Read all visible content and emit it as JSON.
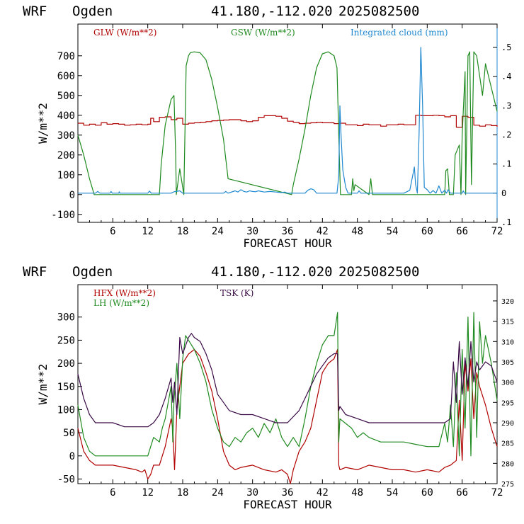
{
  "colors": {
    "red": "#b00000",
    "green": "#1f8a1f",
    "blue": "#1f88d0",
    "purple": "#3a0a46",
    "axis": "#000000"
  },
  "chart_data": [
    {
      "type": "line",
      "header": {
        "model": "WRF",
        "site": "Ogden",
        "latlon": "41.180,-112.020",
        "date": "2025082500"
      },
      "xlabel": "FORECAST HOUR",
      "ylabel": "W/m**2",
      "xlim": [
        0,
        72
      ],
      "xticks": [
        6,
        12,
        18,
        24,
        30,
        36,
        42,
        48,
        54,
        60,
        66,
        72
      ],
      "ylim": [
        -140,
        860
      ],
      "yticks": [
        -100,
        0,
        100,
        200,
        300,
        400,
        500,
        600,
        700
      ],
      "y2lim": [
        -0.1,
        0.58
      ],
      "y2ticks": [
        -0.1,
        0,
        0.1,
        0.2,
        0.3,
        0.4,
        0.5
      ],
      "y2ticklabels": [
        ".1",
        "0",
        ".1",
        ".2",
        ".3",
        ".4",
        ".5"
      ],
      "legend": [
        "GLW (W/m**2)",
        "GSW (W/m**2)",
        "Integrated cloud (mm)"
      ],
      "series": [
        {
          "name": "GLW (W/m**2)",
          "axis": "left",
          "color": "#b00000",
          "step": true,
          "x": [
            0,
            1,
            2,
            3,
            4,
            5,
            6,
            7,
            8,
            9,
            10,
            11,
            12,
            12.5,
            13,
            14,
            15,
            16,
            17,
            18,
            19,
            20,
            21,
            22,
            23,
            24,
            25,
            26,
            27,
            28,
            29,
            30,
            31,
            32,
            33,
            34,
            35,
            36,
            37,
            38,
            39,
            40,
            41,
            42,
            43,
            44,
            45,
            46,
            47,
            48,
            49,
            50,
            51,
            52,
            53,
            54,
            55,
            56,
            57,
            58,
            59,
            60,
            61,
            62,
            63,
            64,
            65,
            66,
            67,
            68,
            69,
            70,
            71,
            72
          ],
          "y": [
            360,
            350,
            355,
            350,
            362,
            355,
            358,
            355,
            350,
            352,
            355,
            352,
            355,
            385,
            368,
            390,
            392,
            378,
            385,
            355,
            360,
            362,
            365,
            368,
            372,
            374,
            376,
            378,
            378,
            372,
            368,
            372,
            390,
            398,
            398,
            395,
            385,
            370,
            365,
            358,
            360,
            362,
            365,
            362,
            362,
            358,
            360,
            352,
            352,
            348,
            355,
            352,
            352,
            345,
            352,
            352,
            355,
            352,
            352,
            400,
            398,
            398,
            400,
            398,
            392,
            398,
            340,
            395,
            390,
            350,
            345,
            352,
            348,
            342
          ]
        },
        {
          "name": "GSW (W/m**2)",
          "axis": "left",
          "color": "#1f8a1f",
          "step": false,
          "x": [
            0,
            1,
            2,
            2.8,
            14,
            14.3,
            15,
            16,
            16.5,
            16.8,
            16.9,
            17.5,
            18.2,
            18.6,
            19,
            19.3,
            20,
            21,
            22,
            23,
            24,
            25,
            25.8,
            36.7,
            37,
            38,
            39,
            40,
            41,
            42,
            43,
            44,
            44.5,
            44.8,
            45.1,
            45.3,
            47,
            47.2,
            47.4,
            47.6,
            50,
            50.3,
            50.6,
            50.9,
            63,
            63.2,
            63.5,
            63.8,
            64.5,
            64.8,
            65.5,
            65.8,
            66,
            66.5,
            66.6,
            67,
            67.3,
            67.6,
            68,
            68.5,
            69.5,
            70,
            71,
            72
          ],
          "y": [
            300,
            200,
            80,
            0,
            0,
            150,
            350,
            480,
            500,
            200,
            0,
            130,
            0,
            650,
            700,
            715,
            720,
            715,
            680,
            580,
            440,
            280,
            80,
            0,
            50,
            180,
            330,
            500,
            640,
            710,
            720,
            700,
            640,
            300,
            0,
            0,
            0,
            80,
            20,
            50,
            0,
            80,
            0,
            0,
            0,
            120,
            130,
            0,
            0,
            200,
            250,
            0,
            300,
            620,
            0,
            700,
            720,
            50,
            720,
            700,
            500,
            660,
            540,
            420
          ]
        },
        {
          "name": "Integrated cloud (mm)",
          "axis": "right",
          "color": "#1f88d0",
          "step": false,
          "x": [
            0,
            3,
            3.4,
            3.8,
            5.5,
            5.7,
            5.9,
            7,
            7.1,
            7.2,
            12,
            12.3,
            12.6,
            16,
            16.5,
            17.5,
            18,
            25,
            25.4,
            25.8,
            27,
            27.5,
            28,
            28.5,
            29,
            29.5,
            30,
            30.5,
            31,
            32,
            33,
            34,
            35,
            35.5,
            36,
            39,
            39.5,
            40,
            40.5,
            41,
            44.5,
            44.8,
            45,
            45.2,
            45.5,
            46,
            46.4,
            48,
            48.3,
            48.6,
            56,
            57,
            57.5,
            57.8,
            58,
            58.3,
            58.6,
            58.9,
            59.2,
            59.5,
            60,
            60.5,
            61,
            61.5,
            62,
            62.5,
            63,
            63.3,
            63.6,
            64,
            66,
            66.2,
            66.4,
            72
          ],
          "y": [
            0,
            0,
            0.006,
            0,
            0,
            0.006,
            0,
            0,
            0.005,
            0,
            0,
            0.007,
            0,
            0,
            0.005,
            0.008,
            0,
            0,
            0.006,
            0,
            0.008,
            0.004,
            0.012,
            0.006,
            0.004,
            0.008,
            0.006,
            0.005,
            0.008,
            0.004,
            0.006,
            0.004,
            0.002,
            0.004,
            0,
            0,
            0.01,
            0.015,
            0.012,
            0,
            0,
            0.06,
            0.3,
            0.2,
            0.08,
            0.02,
            0,
            0,
            0.008,
            0,
            0,
            0.01,
            0.06,
            0.09,
            0.03,
            0,
            0.2,
            0.5,
            0.3,
            0.02,
            0.012,
            0,
            0.009,
            0,
            0.025,
            0,
            0.01,
            0,
            0.012,
            0,
            0,
            0.008,
            0,
            0
          ]
        }
      ]
    },
    {
      "type": "line",
      "header": {
        "model": "WRF",
        "site": "Ogden",
        "latlon": "41.180,-112.020",
        "date": "2025082500"
      },
      "xlabel": "FORECAST HOUR",
      "ylabel": "W/m**2",
      "xlim": [
        0,
        72
      ],
      "xticks": [
        6,
        12,
        18,
        24,
        30,
        36,
        42,
        48,
        54,
        60,
        66,
        72
      ],
      "ylim": [
        -60,
        370
      ],
      "yticks": [
        -50,
        0,
        50,
        100,
        150,
        200,
        250,
        300
      ],
      "y2lim": [
        275,
        324
      ],
      "y2ticks": [
        275,
        280,
        285,
        290,
        295,
        300,
        305,
        310,
        315,
        320
      ],
      "legend": [
        "HFX (W/m**2)",
        "LH  (W/m**2)",
        "TSK (K)"
      ],
      "series": [
        {
          "name": "HFX (W/m**2)",
          "axis": "left",
          "color": "#b00000",
          "x": [
            0,
            1,
            2,
            3,
            6,
            8,
            10,
            11,
            11.5,
            12,
            12.5,
            13,
            14,
            15,
            16,
            16.3,
            16.6,
            17,
            18,
            19,
            20,
            21,
            22,
            23,
            24,
            25,
            26,
            27,
            28,
            30,
            32,
            34,
            35,
            36,
            36.5,
            37,
            38,
            39,
            40,
            41,
            42,
            43,
            44,
            44.6,
            44.8,
            45,
            46,
            48,
            50,
            52,
            54,
            56,
            58,
            60,
            62,
            63,
            64,
            65,
            65.5,
            66,
            66.5,
            67,
            67.5,
            68,
            68.5,
            69,
            70,
            71,
            72
          ],
          "y": [
            60,
            10,
            -10,
            -20,
            -20,
            -25,
            -30,
            -35,
            -30,
            -50,
            -40,
            -20,
            -20,
            20,
            80,
            60,
            -30,
            100,
            200,
            220,
            230,
            215,
            180,
            140,
            80,
            10,
            -20,
            -30,
            -25,
            -20,
            -30,
            -35,
            -30,
            -40,
            -60,
            -30,
            10,
            30,
            60,
            120,
            180,
            200,
            210,
            230,
            -20,
            -30,
            -25,
            -30,
            -20,
            -25,
            -30,
            -30,
            -35,
            -30,
            -35,
            -25,
            -20,
            -10,
            120,
            -10,
            200,
            140,
            210,
            80,
            180,
            150,
            110,
            60,
            20
          ]
        },
        {
          "name": "LH  (W/m**2)",
          "axis": "left",
          "color": "#1f8a1f",
          "x": [
            0,
            1,
            2,
            3,
            6,
            9,
            11.5,
            12,
            12.5,
            13,
            14,
            14.5,
            15,
            16,
            16.3,
            16.5,
            17,
            17.5,
            18,
            18.5,
            19,
            20,
            21,
            22,
            23,
            24,
            25,
            26,
            27,
            28,
            29,
            30,
            31,
            32,
            33,
            34,
            35,
            36,
            37,
            38,
            39,
            40,
            41,
            42,
            43,
            44,
            44.6,
            44.8,
            45,
            46,
            47,
            48,
            49,
            50,
            52,
            54,
            56,
            58,
            60,
            62,
            63,
            63.5,
            64,
            64.5,
            65,
            65.5,
            66,
            66.5,
            67,
            67.5,
            68,
            68.5,
            69,
            69.5,
            70,
            71,
            72
          ],
          "y": [
            110,
            40,
            10,
            0,
            0,
            0,
            0,
            0,
            20,
            40,
            30,
            60,
            80,
            150,
            30,
            120,
            200,
            80,
            210,
            260,
            250,
            230,
            200,
            160,
            100,
            60,
            30,
            20,
            40,
            30,
            50,
            60,
            40,
            70,
            50,
            80,
            40,
            20,
            40,
            20,
            80,
            150,
            200,
            240,
            260,
            260,
            310,
            30,
            80,
            70,
            60,
            40,
            50,
            40,
            30,
            30,
            30,
            25,
            20,
            20,
            70,
            30,
            110,
            20,
            180,
            0,
            230,
            60,
            300,
            0,
            310,
            40,
            290,
            200,
            260,
            200,
            120
          ]
        },
        {
          "name": "TSK (K)",
          "axis": "right",
          "color": "#3a0a46",
          "x": [
            0,
            1,
            2,
            3,
            6,
            8,
            10,
            12,
            13,
            14,
            15,
            16,
            16.3,
            16.6,
            17,
            17.5,
            18,
            19,
            19.5,
            20,
            21,
            22,
            23,
            24,
            25,
            26,
            28,
            30,
            32,
            34,
            36,
            38,
            39,
            40,
            41,
            42,
            43,
            44,
            44.6,
            44.8,
            45,
            46,
            48,
            50,
            52,
            54,
            56,
            58,
            60,
            62,
            63,
            64,
            64.5,
            65,
            65.5,
            66,
            66.5,
            67,
            67.5,
            68,
            68.5,
            69,
            70,
            71,
            72
          ],
          "y": [
            302,
            296,
            292,
            290,
            290,
            289,
            289,
            289,
            290,
            292,
            296,
            301,
            295,
            300,
            292,
            311,
            307,
            311,
            312,
            311,
            310,
            307,
            303,
            297,
            295,
            293,
            292,
            292,
            291,
            290,
            290,
            293,
            296,
            299,
            302,
            304,
            306,
            307,
            307,
            293,
            294,
            292,
            291,
            290,
            290,
            290,
            290,
            290,
            290,
            290,
            290,
            291,
            305,
            295,
            310,
            297,
            306,
            299,
            310,
            300,
            305,
            303,
            305,
            304,
            300
          ]
        }
      ]
    }
  ]
}
